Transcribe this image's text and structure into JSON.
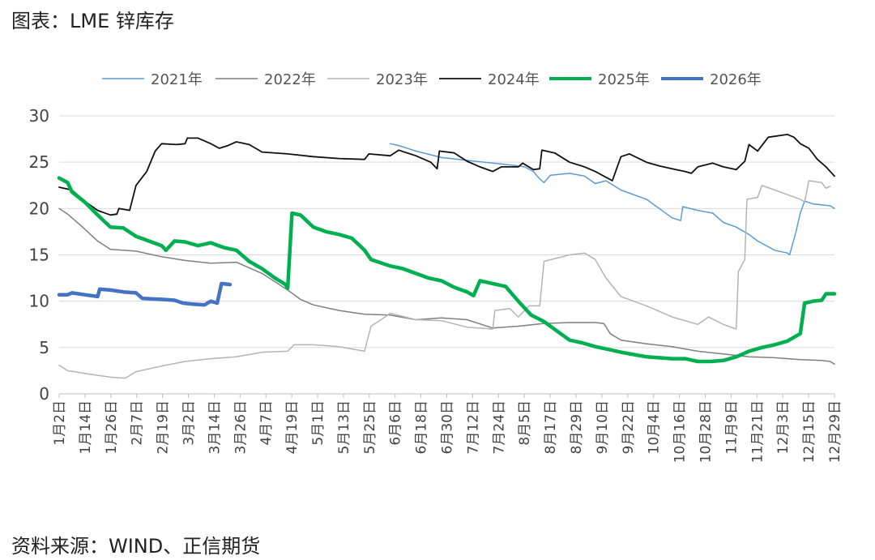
{
  "page": {
    "title": "图表：LME 锌库存",
    "source": "资料来源：WIND、正信期货"
  },
  "chart_data": {
    "type": "line",
    "title": "图表：LME 锌库存",
    "xlabel": "",
    "ylabel": "",
    "ylim": [
      0,
      30
    ],
    "yticks": [
      0,
      5,
      10,
      15,
      20,
      25,
      30
    ],
    "x_range": [
      "01-02",
      "12-31"
    ],
    "xticks": [
      "1月2日",
      "1月14日",
      "1月26日",
      "2月7日",
      "2月19日",
      "3月2日",
      "3月14日",
      "3月26日",
      "4月7日",
      "4月19日",
      "5月1日",
      "5月13日",
      "5月25日",
      "6月6日",
      "6月18日",
      "6月30日",
      "7月12日",
      "7月24日",
      "8月5日",
      "8月17日",
      "8月29日",
      "9月10日",
      "9月22日",
      "10月4日",
      "10月16日",
      "10月28日",
      "11月9日",
      "11月21日",
      "12月3日",
      "12月15日",
      "12月29日"
    ],
    "grid": true,
    "legend_position": "top",
    "series": [
      {
        "name": "2021年",
        "color": "#5b9bd5",
        "width": 1.5,
        "points": [
          [
            "06-06",
            27.0
          ],
          [
            "06-10",
            26.8
          ],
          [
            "06-18",
            26.2
          ],
          [
            "06-30",
            25.5
          ],
          [
            "07-12",
            25.2
          ],
          [
            "07-24",
            24.9
          ],
          [
            "08-05",
            24.6
          ],
          [
            "08-08",
            24.5
          ],
          [
            "08-12",
            24.0
          ],
          [
            "08-15",
            23.2
          ],
          [
            "08-17",
            22.8
          ],
          [
            "08-20",
            23.6
          ],
          [
            "08-29",
            23.8
          ],
          [
            "09-05",
            23.5
          ],
          [
            "09-10",
            22.7
          ],
          [
            "09-15",
            23.0
          ],
          [
            "09-22",
            22.0
          ],
          [
            "10-04",
            21.0
          ],
          [
            "10-10",
            20.0
          ],
          [
            "10-16",
            19.0
          ],
          [
            "10-20",
            18.7
          ],
          [
            "10-21",
            20.2
          ],
          [
            "10-28",
            19.8
          ],
          [
            "11-04",
            19.5
          ],
          [
            "11-09",
            18.5
          ],
          [
            "11-15",
            18.0
          ],
          [
            "11-21",
            17.2
          ],
          [
            "11-25",
            16.5
          ],
          [
            "12-03",
            15.5
          ],
          [
            "12-09",
            15.2
          ],
          [
            "12-10",
            15.0
          ],
          [
            "12-13",
            17.5
          ],
          [
            "12-15",
            19.5
          ],
          [
            "12-17",
            20.8
          ],
          [
            "12-21",
            20.5
          ],
          [
            "12-29",
            20.3
          ],
          [
            "12-31",
            20.0
          ]
        ]
      },
      {
        "name": "2022年",
        "color": "#7f7f7f",
        "width": 1.5,
        "points": [
          [
            "01-02",
            20.0
          ],
          [
            "01-06",
            19.4
          ],
          [
            "01-12",
            18.2
          ],
          [
            "01-20",
            16.5
          ],
          [
            "01-26",
            15.6
          ],
          [
            "02-07",
            15.4
          ],
          [
            "02-19",
            14.8
          ],
          [
            "03-02",
            14.4
          ],
          [
            "03-14",
            14.1
          ],
          [
            "03-26",
            14.2
          ],
          [
            "04-07",
            13.0
          ],
          [
            "04-19",
            11.2
          ],
          [
            "04-25",
            10.2
          ],
          [
            "05-01",
            9.6
          ],
          [
            "05-13",
            9.0
          ],
          [
            "05-25",
            8.6
          ],
          [
            "06-06",
            8.5
          ],
          [
            "06-18",
            8.0
          ],
          [
            "06-30",
            8.2
          ],
          [
            "07-12",
            8.0
          ],
          [
            "07-24",
            7.1
          ],
          [
            "08-05",
            7.3
          ],
          [
            "08-17",
            7.6
          ],
          [
            "08-29",
            7.7
          ],
          [
            "09-10",
            7.7
          ],
          [
            "09-14",
            7.6
          ],
          [
            "09-17",
            6.5
          ],
          [
            "09-22",
            5.8
          ],
          [
            "10-04",
            5.4
          ],
          [
            "10-16",
            5.1
          ],
          [
            "10-28",
            4.6
          ],
          [
            "11-09",
            4.3
          ],
          [
            "11-21",
            4.0
          ],
          [
            "12-03",
            3.9
          ],
          [
            "12-15",
            3.7
          ],
          [
            "12-25",
            3.6
          ],
          [
            "12-29",
            3.5
          ],
          [
            "12-31",
            3.2
          ]
        ]
      },
      {
        "name": "2023年",
        "color": "#b4b4b4",
        "width": 1.5,
        "points": [
          [
            "01-02",
            3.1
          ],
          [
            "01-06",
            2.5
          ],
          [
            "01-14",
            2.2
          ],
          [
            "01-26",
            1.8
          ],
          [
            "02-02",
            1.7
          ],
          [
            "02-07",
            2.4
          ],
          [
            "02-19",
            3.0
          ],
          [
            "03-02",
            3.5
          ],
          [
            "03-14",
            3.8
          ],
          [
            "03-26",
            4.0
          ],
          [
            "04-07",
            4.5
          ],
          [
            "04-19",
            4.6
          ],
          [
            "04-22",
            5.3
          ],
          [
            "05-01",
            5.3
          ],
          [
            "05-13",
            5.1
          ],
          [
            "05-25",
            4.6
          ],
          [
            "05-28",
            7.3
          ],
          [
            "06-03",
            8.2
          ],
          [
            "06-06",
            8.7
          ],
          [
            "06-18",
            8.0
          ],
          [
            "06-30",
            7.9
          ],
          [
            "07-12",
            7.2
          ],
          [
            "07-24",
            7.0
          ],
          [
            "07-25",
            9.0
          ],
          [
            "08-01",
            9.2
          ],
          [
            "08-05",
            8.3
          ],
          [
            "08-10",
            9.5
          ],
          [
            "08-15",
            9.5
          ],
          [
            "08-17",
            14.3
          ],
          [
            "08-29",
            15.0
          ],
          [
            "09-05",
            15.2
          ],
          [
            "09-10",
            14.5
          ],
          [
            "09-15",
            12.5
          ],
          [
            "09-22",
            10.5
          ],
          [
            "10-04",
            9.5
          ],
          [
            "10-16",
            8.3
          ],
          [
            "10-28",
            7.5
          ],
          [
            "11-02",
            8.3
          ],
          [
            "11-09",
            7.5
          ],
          [
            "11-15",
            7.0
          ],
          [
            "11-16",
            13.2
          ],
          [
            "11-19",
            14.5
          ],
          [
            "11-20",
            21.0
          ],
          [
            "11-25",
            21.2
          ],
          [
            "11-27",
            22.5
          ],
          [
            "12-03",
            22.0
          ],
          [
            "12-09",
            21.5
          ],
          [
            "12-15",
            21.0
          ],
          [
            "12-17",
            20.7
          ],
          [
            "12-19",
            23.0
          ],
          [
            "12-25",
            22.8
          ],
          [
            "12-27",
            22.2
          ],
          [
            "12-29",
            22.4
          ]
        ]
      },
      {
        "name": "2024年",
        "color": "#111111",
        "width": 1.8,
        "points": [
          [
            "01-02",
            22.3
          ],
          [
            "01-08",
            22.0
          ],
          [
            "01-14",
            20.8
          ],
          [
            "01-20",
            19.8
          ],
          [
            "01-26",
            19.3
          ],
          [
            "01-29",
            19.4
          ],
          [
            "01-30",
            20.0
          ],
          [
            "02-04",
            19.8
          ],
          [
            "02-07",
            22.5
          ],
          [
            "02-12",
            24.0
          ],
          [
            "02-16",
            26.2
          ],
          [
            "02-19",
            27.0
          ],
          [
            "02-26",
            26.9
          ],
          [
            "03-02",
            27.0
          ],
          [
            "03-03",
            27.6
          ],
          [
            "03-08",
            27.6
          ],
          [
            "03-14",
            27.0
          ],
          [
            "03-18",
            26.5
          ],
          [
            "03-22",
            26.8
          ],
          [
            "03-26",
            27.2
          ],
          [
            "04-01",
            26.9
          ],
          [
            "04-07",
            26.1
          ],
          [
            "04-19",
            25.9
          ],
          [
            "05-01",
            25.6
          ],
          [
            "05-13",
            25.4
          ],
          [
            "05-25",
            25.3
          ],
          [
            "05-27",
            25.9
          ],
          [
            "06-06",
            25.7
          ],
          [
            "06-10",
            26.3
          ],
          [
            "06-18",
            25.7
          ],
          [
            "06-25",
            25.0
          ],
          [
            "06-28",
            24.3
          ],
          [
            "06-29",
            26.2
          ],
          [
            "07-06",
            26.0
          ],
          [
            "07-12",
            25.1
          ],
          [
            "07-18",
            24.5
          ],
          [
            "07-24",
            24.0
          ],
          [
            "07-28",
            24.5
          ],
          [
            "08-05",
            24.5
          ],
          [
            "08-07",
            24.9
          ],
          [
            "08-12",
            24.2
          ],
          [
            "08-15",
            24.3
          ],
          [
            "08-16",
            26.3
          ],
          [
            "08-22",
            26.0
          ],
          [
            "08-29",
            25.0
          ],
          [
            "09-05",
            24.5
          ],
          [
            "09-10",
            24.0
          ],
          [
            "09-18",
            23.0
          ],
          [
            "09-22",
            25.6
          ],
          [
            "09-26",
            25.9
          ],
          [
            "10-04",
            25.0
          ],
          [
            "10-10",
            24.6
          ],
          [
            "10-16",
            24.3
          ],
          [
            "10-22",
            24.0
          ],
          [
            "10-25",
            23.8
          ],
          [
            "10-28",
            24.5
          ],
          [
            "11-04",
            24.9
          ],
          [
            "11-09",
            24.5
          ],
          [
            "11-15",
            24.2
          ],
          [
            "11-19",
            25.1
          ],
          [
            "11-21",
            26.9
          ],
          [
            "11-25",
            26.2
          ],
          [
            "11-30",
            27.7
          ],
          [
            "12-03",
            27.8
          ],
          [
            "12-09",
            28.0
          ],
          [
            "12-12",
            27.7
          ],
          [
            "12-15",
            27.0
          ],
          [
            "12-19",
            26.5
          ],
          [
            "12-23",
            25.3
          ],
          [
            "12-27",
            24.5
          ],
          [
            "12-31",
            23.5
          ]
        ]
      },
      {
        "name": "2025年",
        "color": "#00b050",
        "width": 4.5,
        "points": [
          [
            "01-02",
            23.3
          ],
          [
            "01-06",
            22.8
          ],
          [
            "01-08",
            21.8
          ],
          [
            "01-14",
            20.7
          ],
          [
            "01-20",
            19.3
          ],
          [
            "01-26",
            18.0
          ],
          [
            "02-01",
            17.9
          ],
          [
            "02-07",
            17.0
          ],
          [
            "02-13",
            16.5
          ],
          [
            "02-19",
            16.0
          ],
          [
            "02-21",
            15.5
          ],
          [
            "02-25",
            16.5
          ],
          [
            "03-02",
            16.4
          ],
          [
            "03-08",
            16.0
          ],
          [
            "03-14",
            16.3
          ],
          [
            "03-20",
            15.8
          ],
          [
            "03-26",
            15.5
          ],
          [
            "04-01",
            14.3
          ],
          [
            "04-07",
            13.5
          ],
          [
            "04-13",
            12.5
          ],
          [
            "04-18",
            11.8
          ],
          [
            "04-19",
            11.4
          ],
          [
            "04-21",
            19.5
          ],
          [
            "04-25",
            19.3
          ],
          [
            "05-01",
            18.0
          ],
          [
            "05-07",
            17.5
          ],
          [
            "05-13",
            17.2
          ],
          [
            "05-19",
            16.8
          ],
          [
            "05-25",
            15.5
          ],
          [
            "05-28",
            14.5
          ],
          [
            "06-06",
            13.8
          ],
          [
            "06-12",
            13.5
          ],
          [
            "06-18",
            13.0
          ],
          [
            "06-24",
            12.5
          ],
          [
            "06-30",
            12.2
          ],
          [
            "07-06",
            11.5
          ],
          [
            "07-12",
            11.0
          ],
          [
            "07-15",
            10.6
          ],
          [
            "07-18",
            12.2
          ],
          [
            "07-24",
            11.9
          ],
          [
            "07-30",
            11.6
          ],
          [
            "08-05",
            10.0
          ],
          [
            "08-11",
            8.5
          ],
          [
            "08-17",
            7.8
          ],
          [
            "08-23",
            6.8
          ],
          [
            "08-29",
            5.8
          ],
          [
            "09-04",
            5.5
          ],
          [
            "09-10",
            5.1
          ],
          [
            "09-16",
            4.8
          ],
          [
            "09-22",
            4.5
          ],
          [
            "10-04",
            4.0
          ],
          [
            "10-16",
            3.8
          ],
          [
            "10-22",
            3.8
          ],
          [
            "10-28",
            3.5
          ],
          [
            "11-03",
            3.5
          ],
          [
            "11-09",
            3.6
          ],
          [
            "11-15",
            4.0
          ],
          [
            "11-21",
            4.6
          ],
          [
            "11-27",
            5.0
          ],
          [
            "12-03",
            5.3
          ],
          [
            "12-09",
            5.7
          ],
          [
            "12-15",
            6.5
          ],
          [
            "12-17",
            9.8
          ],
          [
            "12-21",
            10.0
          ],
          [
            "12-25",
            10.1
          ],
          [
            "12-27",
            10.8
          ],
          [
            "12-31",
            10.8
          ]
        ]
      },
      {
        "name": "2026年",
        "color": "#4472c4",
        "width": 4.5,
        "points": [
          [
            "01-02",
            10.7
          ],
          [
            "01-06",
            10.7
          ],
          [
            "01-08",
            10.9
          ],
          [
            "01-14",
            10.7
          ],
          [
            "01-20",
            10.5
          ],
          [
            "01-21",
            11.3
          ],
          [
            "01-26",
            11.2
          ],
          [
            "02-01",
            11.0
          ],
          [
            "02-07",
            10.9
          ],
          [
            "02-10",
            10.3
          ],
          [
            "02-19",
            10.2
          ],
          [
            "02-25",
            10.1
          ],
          [
            "03-01",
            9.8
          ],
          [
            "03-05",
            9.7
          ],
          [
            "03-11",
            9.6
          ],
          [
            "03-14",
            10.0
          ],
          [
            "03-17",
            9.8
          ],
          [
            "03-19",
            11.9
          ],
          [
            "03-23",
            11.8
          ]
        ]
      }
    ]
  }
}
